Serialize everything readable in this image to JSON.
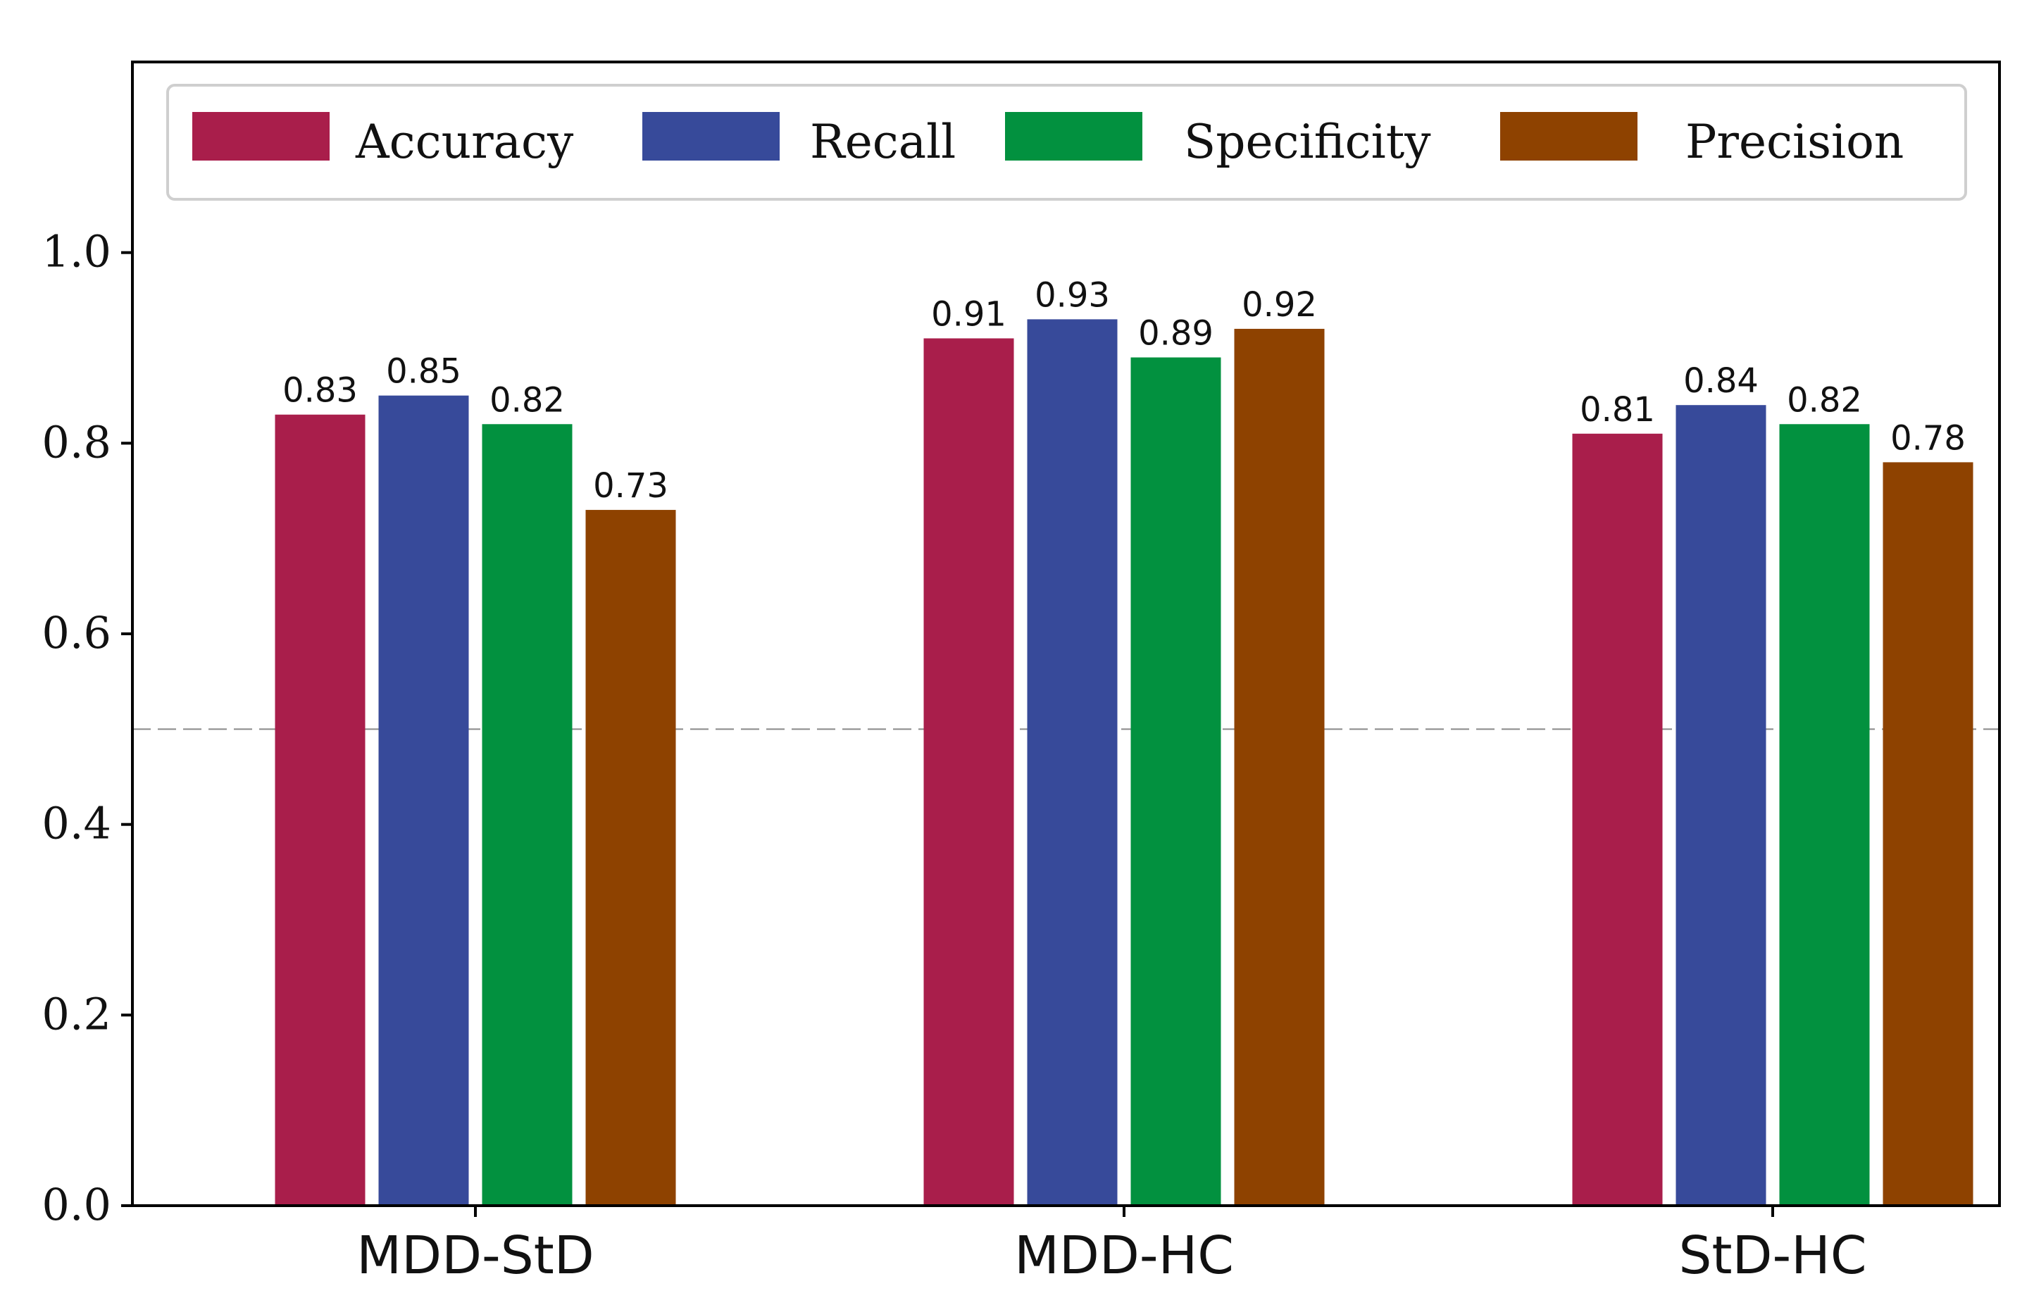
{
  "chart_data": {
    "type": "bar",
    "categories": [
      "MDD-StD",
      "MDD-HC",
      "StD-HC"
    ],
    "series": [
      {
        "name": "Accuracy",
        "color": "#A91E4B",
        "values": [
          0.83,
          0.91,
          0.81
        ],
        "labels": [
          "0.83",
          "0.91",
          "0.81"
        ]
      },
      {
        "name": "Recall",
        "color": "#374A9A",
        "values": [
          0.85,
          0.93,
          0.84
        ],
        "labels": [
          "0.85",
          "0.93",
          "0.84"
        ]
      },
      {
        "name": "Specificity",
        "color": "#02913F",
        "values": [
          0.82,
          0.89,
          0.82
        ],
        "labels": [
          "0.82",
          "0.89",
          "0.82"
        ]
      },
      {
        "name": "Precision",
        "color": "#8E4200",
        "values": [
          0.73,
          0.92,
          0.78
        ],
        "labels": [
          "0.73",
          "0.92",
          "0.78"
        ]
      }
    ],
    "yticks": [
      "0.0",
      "0.2",
      "0.4",
      "0.6",
      "0.8",
      "1.0"
    ],
    "ylim": [
      0,
      1.2
    ],
    "reference_line": 0.5,
    "legend_position": "top",
    "grid": false
  }
}
